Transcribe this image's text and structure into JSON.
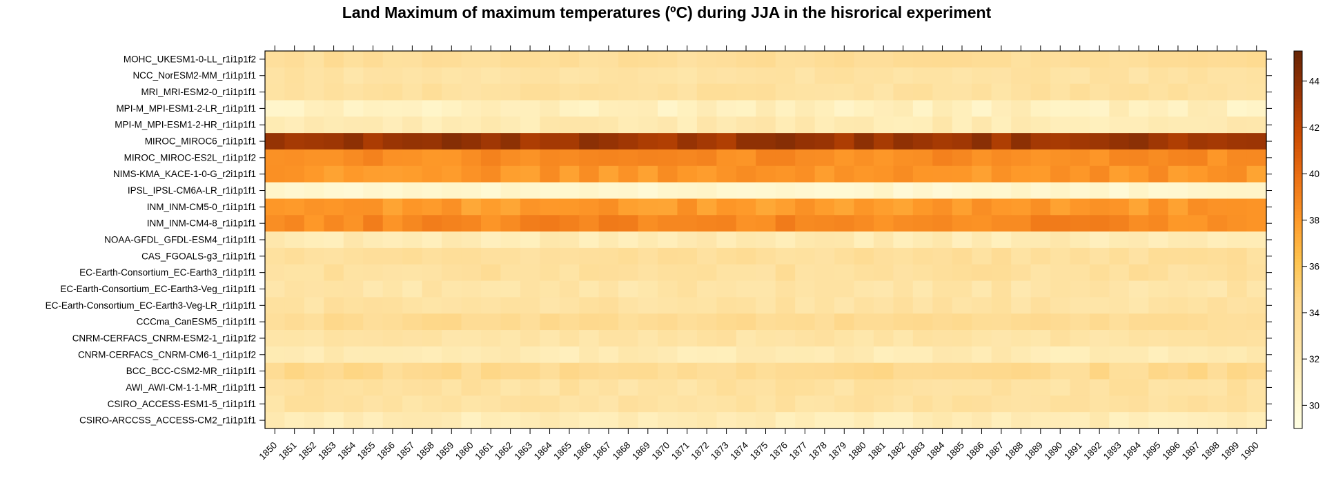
{
  "chart_data": {
    "type": "heatmap",
    "title": "Land Maximum of maximum temperatures (ºC) during JJA in the hisrorical experiment",
    "xlabel": "",
    "ylabel": "",
    "x": [
      "1850",
      "1851",
      "1852",
      "1853",
      "1854",
      "1855",
      "1856",
      "1857",
      "1858",
      "1859",
      "1860",
      "1861",
      "1862",
      "1863",
      "1864",
      "1865",
      "1866",
      "1867",
      "1868",
      "1869",
      "1870",
      "1871",
      "1872",
      "1873",
      "1874",
      "1875",
      "1876",
      "1877",
      "1878",
      "1879",
      "1880",
      "1881",
      "1882",
      "1883",
      "1884",
      "1885",
      "1886",
      "1887",
      "1888",
      "1889",
      "1890",
      "1891",
      "1892",
      "1893",
      "1894",
      "1895",
      "1896",
      "1897",
      "1898",
      "1899",
      "1900"
    ],
    "y": [
      "MOHC_UKESM1-0-LL_r1i1p1f2",
      "NCC_NorESM2-MM_r1i1p1f1",
      "MRI_MRI-ESM2-0_r1i1p1f1",
      "MPI-M_MPI-ESM1-2-LR_r1i1p1f1",
      "MPI-M_MPI-ESM1-2-HR_r1i1p1f1",
      "MIROC_MIROC6_r1i1p1f1",
      "MIROC_MIROC-ES2L_r1i1p1f2",
      "NIMS-KMA_KACE-1-0-G_r2i1p1f1",
      "IPSL_IPSL-CM6A-LR_r1i1p1f1",
      "INM_INM-CM5-0_r1i1p1f1",
      "INM_INM-CM4-8_r1i1p1f1",
      "NOAA-GFDL_GFDL-ESM4_r1i1p1f1",
      "CAS_FGOALS-g3_r1i1p1f1",
      "EC-Earth-Consortium_EC-Earth3_r1i1p1f1",
      "EC-Earth-Consortium_EC-Earth3-Veg_r1i1p1f1",
      "EC-Earth-Consortium_EC-Earth3-Veg-LR_r1i1p1f1",
      "CCCma_CanESM5_r1i1p1f1",
      "CNRM-CERFACS_CNRM-ESM2-1_r1i1p1f2",
      "CNRM-CERFACS_CNRM-CM6-1_r1i1p1f2",
      "BCC_BCC-CSM2-MR_r1i1p1f1",
      "AWI_AWI-CM-1-1-MR_r1i1p1f1",
      "CSIRO_ACCESS-ESM1-5_r1i1p1f1",
      "CSIRO-ARCCSS_ACCESS-CM2_r1i1p1f1"
    ],
    "row_base": [
      33.6,
      32.9,
      33.1,
      31.2,
      31.9,
      43.4,
      38.6,
      38.2,
      30.3,
      38.0,
      38.8,
      31.8,
      33.4,
      33.3,
      32.6,
      32.9,
      34.0,
      32.8,
      31.8,
      34.1,
      33.0,
      33.0,
      31.6
    ],
    "row_amp": [
      0.6,
      0.5,
      0.6,
      0.8,
      0.7,
      0.8,
      0.5,
      0.6,
      0.5,
      0.6,
      0.7,
      0.6,
      0.6,
      0.7,
      0.7,
      0.7,
      0.6,
      0.6,
      0.6,
      0.7,
      0.7,
      0.6,
      0.6
    ],
    "colorbar": {
      "min": 29,
      "max": 45.3,
      "ticks": [
        30,
        32,
        34,
        36,
        38,
        40,
        42,
        44
      ],
      "palette": [
        "#ffffe5",
        "#fff3c4",
        "#fee4a6",
        "#fed98e",
        "#fec44f",
        "#fe9929",
        "#ec7014",
        "#cc4c02",
        "#993404",
        "#662506"
      ]
    }
  }
}
